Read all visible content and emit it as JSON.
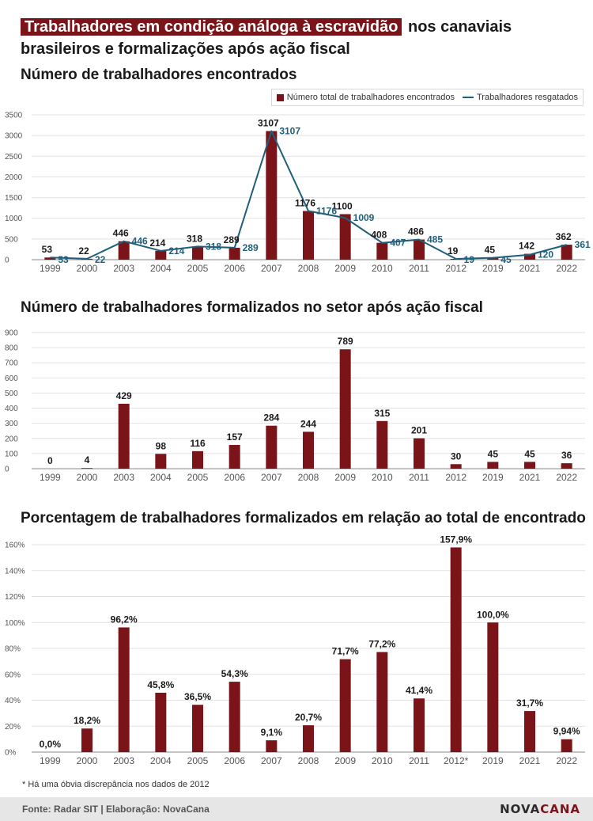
{
  "headline": {
    "highlight": "Trabalhadores em condição análoga à escravidão",
    "rest": " nos canaviais brasileiros e formalizações após ação fiscal"
  },
  "colors": {
    "bar": "#7b1419",
    "line": "#1f5f7a",
    "grid": "#e2e2e2",
    "axis": "#888888"
  },
  "chart_data": [
    {
      "type": "bar",
      "title": "Número de trabalhadores  encontrados",
      "categories": [
        "1999",
        "2000",
        "2003",
        "2004",
        "2005",
        "2006",
        "2007",
        "2008",
        "2009",
        "2010",
        "2011",
        "2012",
        "2019",
        "2021",
        "2022"
      ],
      "ylim": [
        0,
        3500
      ],
      "yticks": [
        "0",
        "500",
        "1000",
        "1500",
        "2000",
        "2500",
        "3000",
        "3500"
      ],
      "ytick_values": [
        0,
        500,
        1000,
        1500,
        2000,
        2500,
        3000,
        3500
      ],
      "grid": true,
      "legend_position": "top-right",
      "series": [
        {
          "name": "Número total de trabalhadores encontrados",
          "type": "bar",
          "values": [
            53,
            22,
            446,
            214,
            318,
            289,
            3107,
            1176,
            1100,
            408,
            486,
            19,
            45,
            142,
            362
          ],
          "labels": [
            "53",
            "22",
            "446",
            "214",
            "318",
            "289",
            "3107",
            "1176",
            "1100",
            "408",
            "486",
            "19",
            "45",
            "142",
            "362"
          ]
        },
        {
          "name": "Trabalhadores resgatados",
          "type": "line",
          "values": [
            53,
            22,
            446,
            214,
            318,
            289,
            3107,
            1176,
            1009,
            407,
            485,
            19,
            45,
            120,
            361
          ],
          "labels": [
            "53",
            "22",
            "446",
            "214",
            "318",
            "289",
            "3107",
            "1176",
            "1009",
            "407",
            "485",
            "19",
            "45",
            "120",
            "361"
          ]
        }
      ]
    },
    {
      "type": "bar",
      "title": "Número de trabalhadores  formalizados  no setor após ação fiscal",
      "categories": [
        "1999",
        "2000",
        "2003",
        "2004",
        "2005",
        "2006",
        "2007",
        "2008",
        "2009",
        "2010",
        "2011",
        "2012",
        "2019",
        "2021",
        "2022"
      ],
      "ylim": [
        0,
        900
      ],
      "yticks": [
        "0",
        "100",
        "200",
        "300",
        "400",
        "500",
        "600",
        "700",
        "800",
        "900"
      ],
      "ytick_values": [
        0,
        100,
        200,
        300,
        400,
        500,
        600,
        700,
        800,
        900
      ],
      "grid": true,
      "values": [
        0,
        4,
        429,
        98,
        116,
        157,
        284,
        244,
        789,
        315,
        201,
        30,
        45,
        45,
        36
      ],
      "labels": [
        "0",
        "4",
        "429",
        "98",
        "116",
        "157",
        "284",
        "244",
        "789",
        "315",
        "201",
        "30",
        "45",
        "45",
        "36"
      ]
    },
    {
      "type": "bar",
      "title": "Porcentagem de trabalhadores  formalizados  em relação ao total de encontrado",
      "categories": [
        "1999",
        "2000",
        "2003",
        "2004",
        "2005",
        "2006",
        "2007",
        "2008",
        "2009",
        "2010",
        "2011",
        "2012*",
        "2019",
        "2021",
        "2022"
      ],
      "ylim": [
        0,
        160
      ],
      "yticks": [
        "0%",
        "20%",
        "40%",
        "60%",
        "80%",
        "100%",
        "120%",
        "140%",
        "160%"
      ],
      "ytick_values": [
        0,
        20,
        40,
        60,
        80,
        100,
        120,
        140,
        160
      ],
      "grid": true,
      "values": [
        0,
        18.2,
        96.2,
        45.8,
        36.5,
        54.3,
        9.1,
        20.7,
        71.7,
        77.2,
        41.4,
        157.9,
        100,
        31.7,
        9.94
      ],
      "labels": [
        "0,0%",
        "18,2%",
        "96,2%",
        "45,8%",
        "36,5%",
        "54,3%",
        "9,1%",
        "20,7%",
        "71,7%",
        "77,2%",
        "41,4%",
        "157,9%",
        "100,0%",
        "31,7%",
        "9,94%"
      ]
    }
  ],
  "footnote": "* Há uma óbvia discrepância nos dados de 2012",
  "footer": {
    "source": "Fonte: Radar SIT | Elaboração: NovaCana",
    "brand_a": "NOVA",
    "brand_b": "CANA"
  }
}
